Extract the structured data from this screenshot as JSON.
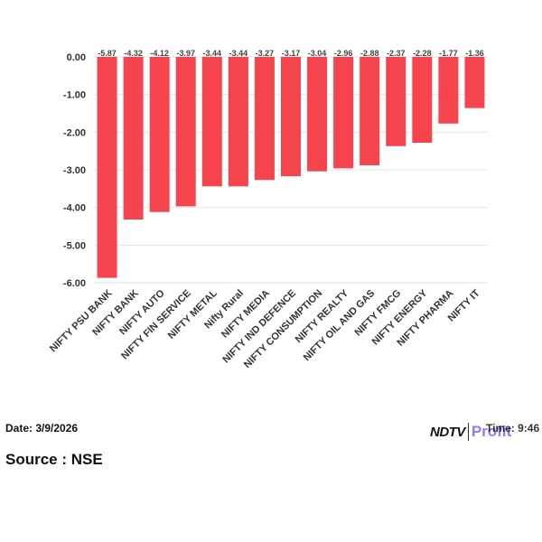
{
  "chart_data": {
    "type": "bar",
    "categories": [
      "NIFTY PSU BANK",
      "NIFTY BANK",
      "NIFTY AUTO",
      "NIFTY FIN SERVICE",
      "NIFTY METAL",
      "Nifty Rural",
      "NIFTY MEDIA",
      "NIFTY IND DEFENCE",
      "NIFTY CONSUMPTION",
      "NIFTY REALTY",
      "NIFTY OIL AND GAS",
      "NIFTY FMCG",
      "NIFTY ENERGY",
      "NIFTY PHARMA",
      "NIFTY IT"
    ],
    "values": [
      -5.87,
      -4.32,
      -4.12,
      -3.97,
      -3.44,
      -3.44,
      -3.27,
      -3.17,
      -3.04,
      -2.96,
      -2.88,
      -2.37,
      -2.28,
      -1.77,
      -1.36
    ],
    "value_labels": [
      "-5.87",
      "-4.32",
      "-4.12",
      "-3.97",
      "-3.44",
      "-3.44",
      "-3.27",
      "-3.17",
      "-3.04",
      "-2.96",
      "-2.88",
      "-2.37",
      "-2.28",
      "-1.77",
      "-1.36"
    ],
    "yticks": [
      "0.00",
      "-1.00",
      "-2.00",
      "-3.00",
      "-4.00",
      "-5.00",
      "-6.00"
    ],
    "ylim": [
      -6,
      0
    ],
    "grid": true,
    "bar_color": "#f5444e"
  },
  "footer": {
    "date": "Date: 3/9/2026",
    "source": "Source : NSE",
    "time": "Time: 9:46"
  },
  "logo": {
    "brand": "NDTV",
    "sub": "Profit"
  }
}
